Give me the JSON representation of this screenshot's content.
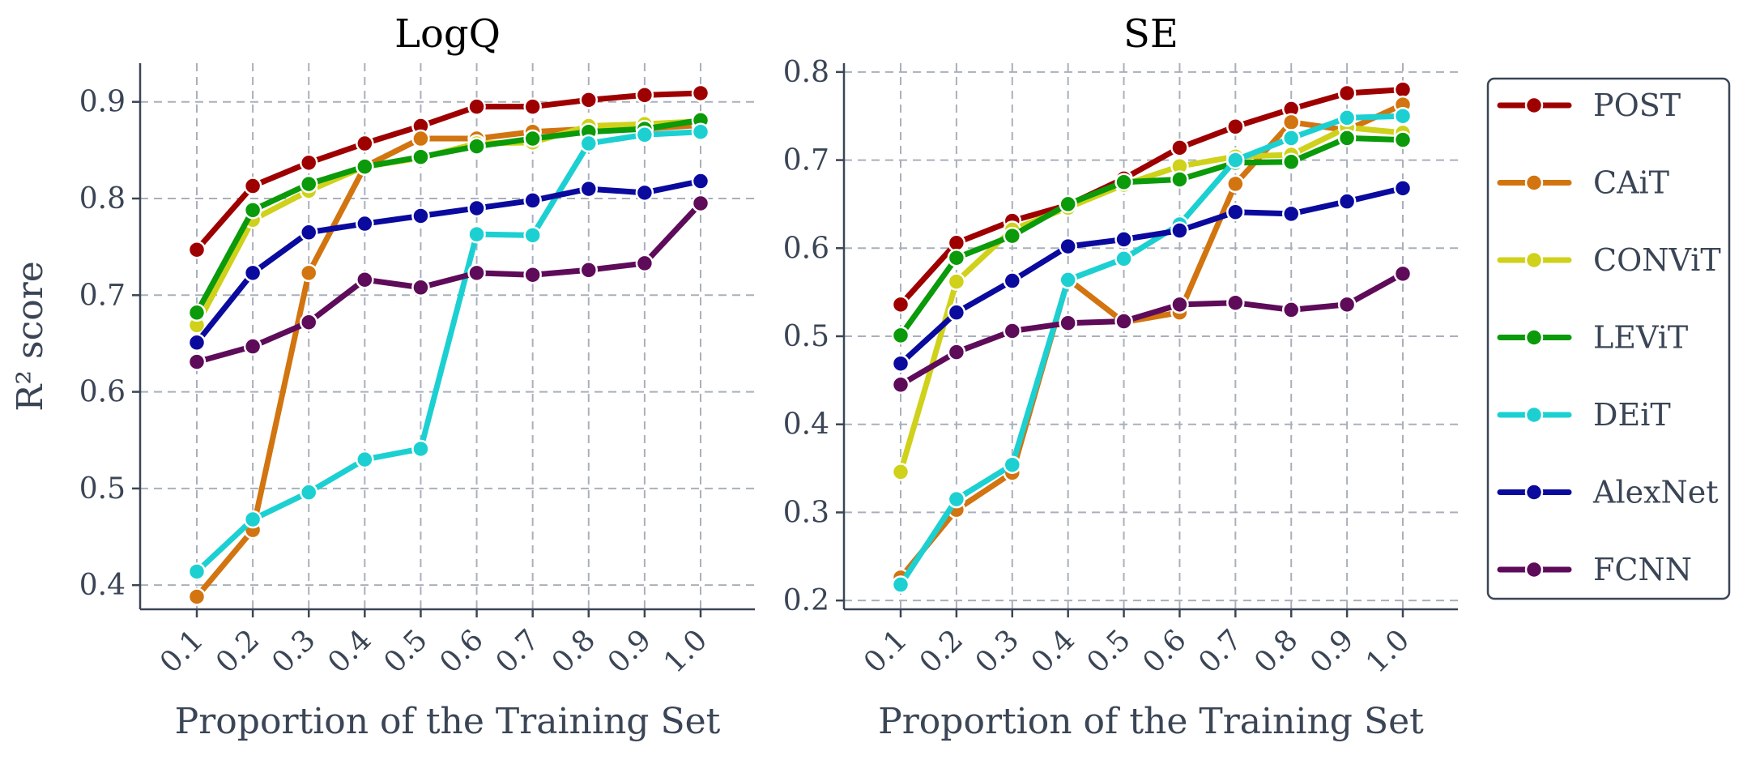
{
  "chart_data": [
    {
      "type": "line",
      "title": "LogQ",
      "xlabel": "Proportion of the Training Set",
      "ylabel": "R² score",
      "categories": [
        "0.1",
        "0.2",
        "0.3",
        "0.4",
        "0.5",
        "0.6",
        "0.7",
        "0.8",
        "0.9",
        "1.0"
      ],
      "yticks": [
        "0.4",
        "0.5",
        "0.6",
        "0.7",
        "0.8",
        "0.9"
      ],
      "ylim": [
        0.375,
        0.94
      ],
      "grid": true,
      "series": [
        {
          "name": "POST",
          "values": [
            0.747,
            0.813,
            0.837,
            0.857,
            0.875,
            0.895,
            0.895,
            0.902,
            0.907,
            0.909
          ]
        },
        {
          "name": "CAiT",
          "values": [
            0.388,
            0.457,
            0.723,
            0.833,
            0.862,
            0.862,
            0.869,
            0.872,
            0.872,
            0.876
          ]
        },
        {
          "name": "CONViT",
          "values": [
            0.669,
            0.778,
            0.808,
            0.833,
            0.842,
            0.857,
            0.858,
            0.875,
            0.877,
            0.88
          ]
        },
        {
          "name": "LEViT",
          "values": [
            0.682,
            0.788,
            0.815,
            0.833,
            0.843,
            0.854,
            0.862,
            0.869,
            0.872,
            0.881
          ]
        },
        {
          "name": "DEiT",
          "values": [
            0.414,
            0.468,
            0.496,
            0.53,
            0.541,
            0.763,
            0.762,
            0.857,
            0.866,
            0.869
          ]
        },
        {
          "name": "AlexNet",
          "values": [
            0.651,
            0.723,
            0.765,
            0.774,
            0.782,
            0.79,
            0.798,
            0.81,
            0.806,
            0.818
          ]
        },
        {
          "name": "FCNN",
          "values": [
            0.631,
            0.647,
            0.672,
            0.716,
            0.708,
            0.723,
            0.721,
            0.726,
            0.733,
            0.795
          ]
        }
      ]
    },
    {
      "type": "line",
      "title": "SE",
      "xlabel": "Proportion of the Training Set",
      "ylabel": "",
      "categories": [
        "0.1",
        "0.2",
        "0.3",
        "0.4",
        "0.5",
        "0.6",
        "0.7",
        "0.8",
        "0.9",
        "1.0"
      ],
      "yticks": [
        "0.2",
        "0.3",
        "0.4",
        "0.5",
        "0.6",
        "0.7",
        "0.8"
      ],
      "ylim": [
        0.19,
        0.81
      ],
      "grid": true,
      "series": [
        {
          "name": "POST",
          "values": [
            0.536,
            0.606,
            0.631,
            0.649,
            0.679,
            0.714,
            0.738,
            0.758,
            0.776,
            0.78
          ]
        },
        {
          "name": "CAiT",
          "values": [
            0.226,
            0.303,
            0.345,
            0.565,
            0.516,
            0.527,
            0.673,
            0.743,
            0.734,
            0.763
          ]
        },
        {
          "name": "CONViT",
          "values": [
            0.346,
            0.562,
            0.621,
            0.646,
            0.672,
            0.693,
            0.704,
            0.706,
            0.737,
            0.731
          ]
        },
        {
          "name": "LEViT",
          "values": [
            0.501,
            0.589,
            0.614,
            0.65,
            0.675,
            0.678,
            0.697,
            0.698,
            0.725,
            0.723
          ]
        },
        {
          "name": "DEiT",
          "values": [
            0.218,
            0.315,
            0.354,
            0.564,
            0.588,
            0.627,
            0.7,
            0.725,
            0.748,
            0.75
          ]
        },
        {
          "name": "AlexNet",
          "values": [
            0.469,
            0.527,
            0.563,
            0.602,
            0.61,
            0.62,
            0.641,
            0.639,
            0.653,
            0.668
          ]
        },
        {
          "name": "FCNN",
          "values": [
            0.445,
            0.482,
            0.506,
            0.515,
            0.517,
            0.536,
            0.538,
            0.53,
            0.536,
            0.571
          ]
        }
      ]
    }
  ],
  "legend": {
    "position": "right",
    "items": [
      "POST",
      "CAiT",
      "CONViT",
      "LEViT",
      "DEiT",
      "AlexNet",
      "FCNN"
    ]
  },
  "colors": {
    "POST": "#9e0000",
    "CAiT": "#d2740f",
    "CONViT": "#cfd11a",
    "LEViT": "#0a9a0a",
    "DEiT": "#1cd0d2",
    "AlexNet": "#0a0a9e",
    "FCNN": "#5e0b5a"
  }
}
